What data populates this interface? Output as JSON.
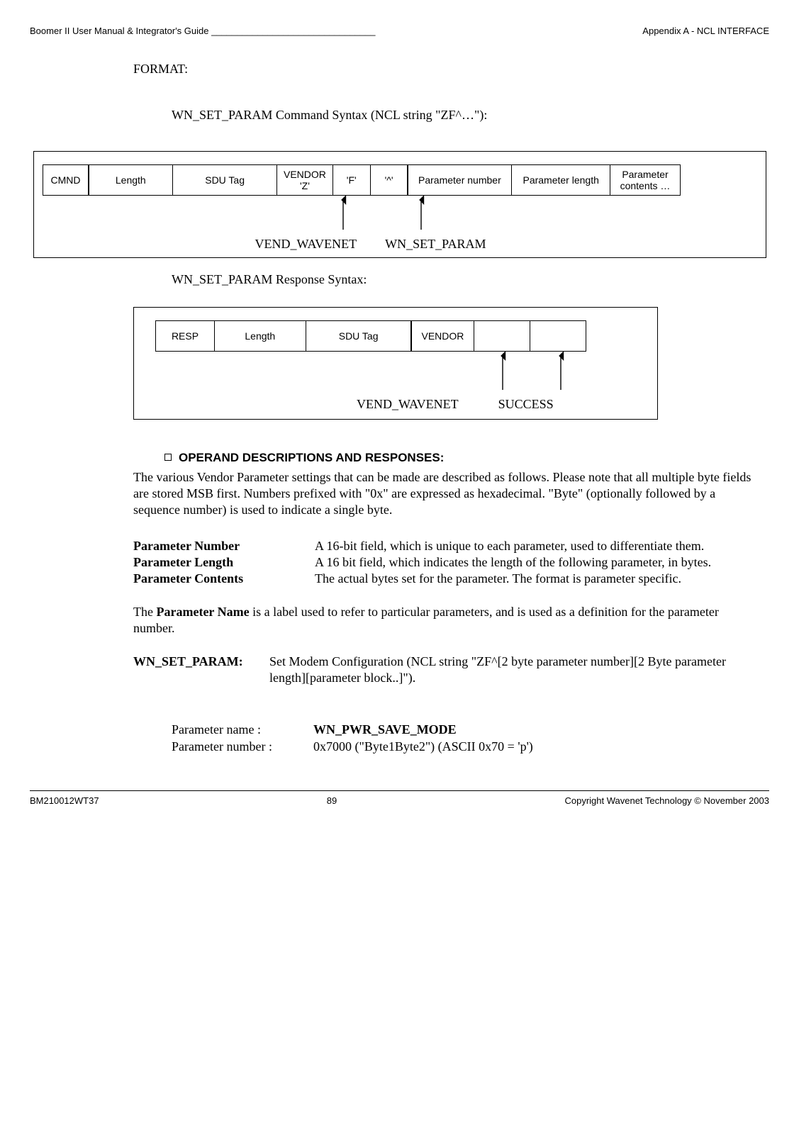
{
  "header": {
    "left": "Boomer II User Manual & Integrator's Guide",
    "underscore": "________________________________",
    "right": "Appendix A - NCL INTERFACE"
  },
  "footer": {
    "left": "BM210012WT37",
    "mid": "89",
    "right": "Copyright Wavenet Technology © November 2003"
  },
  "sec": {
    "format": "FORMAT:",
    "cmd_title": "WN_SET_PARAM Command Syntax (NCL string \"ZF^…\"):",
    "resp_title": "WN_SET_PARAM Response Syntax:"
  },
  "diag1": {
    "b1": "CMND",
    "b2": "Length",
    "b3": "SDU Tag",
    "b4": "VENDOR\n'Z'",
    "b5": "'F'",
    "b6": "'^'",
    "b7": "Parameter number",
    "b8": "Parameter length",
    "b9": "Parameter\ncontents …",
    "a1": "VEND_WAVENET",
    "a2": "WN_SET_PARAM"
  },
  "diag2": {
    "b1": "RESP",
    "b2": "Length",
    "b3": "SDU Tag",
    "b4": "VENDOR",
    "a1": "VEND_WAVENET",
    "a2": "SUCCESS"
  },
  "op": {
    "heading": "OPERAND DESCRIPTIONS AND RESPONSES:",
    "intro": "The various Vendor Parameter settings that can be made are described as follows.  Please note that all multiple byte fields are stored MSB first.  Numbers prefixed with \"0x\" are expressed as hexadecimal.  \"Byte\" (optionally followed by a sequence number) is used to indicate a single byte.",
    "d1t": "Parameter Number",
    "d1d": "A 16-bit field, which is unique to each parameter, used to differentiate them.",
    "d2t": "Parameter Length",
    "d2d": "A 16 bit field, which indicates the length of the following parameter, in bytes.",
    "d3t": "Parameter Contents",
    "d3d": "The actual bytes set for the parameter.  The format is parameter specific.",
    "p2a": "The ",
    "p2b": "Parameter Name",
    "p2c": " is a label used to refer to particular parameters, and is used as a definition for the parameter number.",
    "wn_label": "WN_SET_PARAM",
    "wn_colon": ":",
    "wn_desc": "Set Modem Configuration  (NCL string \"ZF^[2 byte parameter number][2 Byte parameter length][parameter block..]\").",
    "pn_name_l": "Parameter name :",
    "pn_name_v": "WN_PWR_SAVE_MODE",
    "pn_num_l": "Parameter number :",
    "pn_num_v": " 0x7000 (\"Byte1Byte2\")     (ASCII 0x70 = 'p')"
  },
  "style": {
    "widths1": [
      66,
      120,
      148,
      80,
      54,
      54,
      148,
      140,
      100
    ],
    "widths2": [
      84,
      130,
      150,
      90,
      80,
      80
    ]
  }
}
